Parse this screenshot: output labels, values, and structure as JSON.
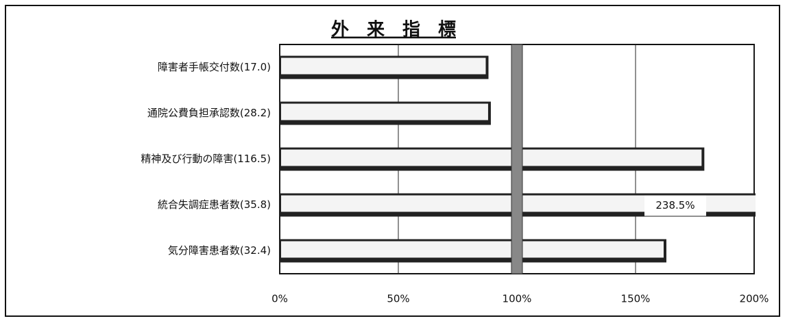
{
  "chart_data": {
    "type": "barh",
    "title": "外　来　指　標",
    "categories": [
      "障害者手帳交付数(17.0)",
      "通院公費負担承認数(28.2)",
      "精神及び行動の障害(116.5)",
      "統合失調症患者数(35.8)",
      "気分障害患者数(32.4)"
    ],
    "values": [
      88,
      89,
      179,
      238.5,
      163
    ],
    "value_labels": [
      null,
      null,
      null,
      "238.5%",
      null
    ],
    "color": "#f4f4f4",
    "xlim": [
      0,
      200
    ],
    "xticks": [
      {
        "value": 0,
        "label": "0%"
      },
      {
        "value": 50,
        "label": "50%"
      },
      {
        "value": 100,
        "label": "100%"
      },
      {
        "value": 150,
        "label": "150%"
      },
      {
        "value": 200,
        "label": "200%"
      }
    ],
    "reference": 100,
    "grid": true
  }
}
